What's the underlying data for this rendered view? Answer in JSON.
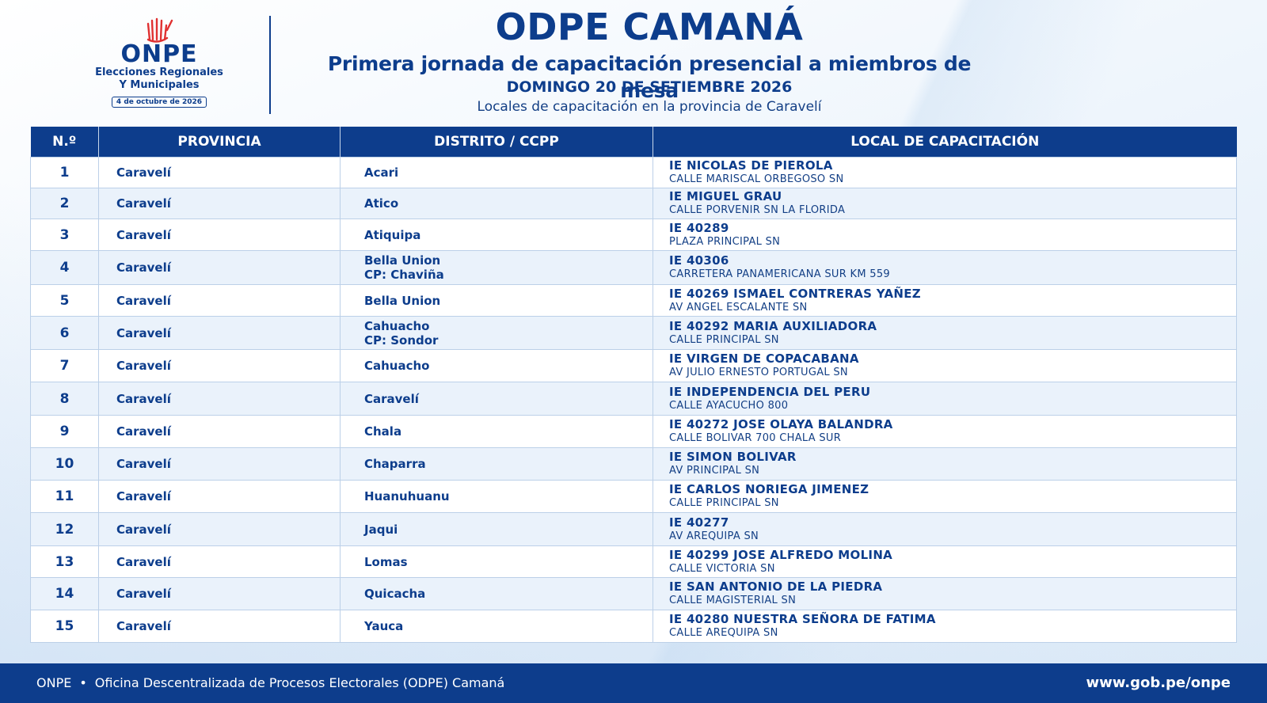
{
  "logo": {
    "name": "ONPE",
    "subtitle_line1": "Elecciones Regionales",
    "subtitle_line2": "Y Municipales",
    "date": "4 de octubre de 2026"
  },
  "header": {
    "title": "ODPE CAMANÁ",
    "subtitle": "Primera jornada de capacitación presencial a miembros de mesa",
    "date": "DOMINGO 20 DE SETIEMBRE 2026",
    "location": "Locales de capacitación en la provincia de Caravelí"
  },
  "table": {
    "columns": [
      "N.º",
      "PROVINCIA",
      "DISTRITO / CCPP",
      "LOCAL DE CAPACITACIÓN"
    ],
    "rows": [
      {
        "num": "1",
        "provincia": "Caravelí",
        "distrito": "Acari",
        "ccpp": "",
        "local": "IE NICOLAS DE PIEROLA",
        "direccion": "CALLE MARISCAL ORBEGOSO SN"
      },
      {
        "num": "2",
        "provincia": "Caravelí",
        "distrito": "Atico",
        "ccpp": "",
        "local": "IE MIGUEL GRAU",
        "direccion": "CALLE PORVENIR SN LA FLORIDA"
      },
      {
        "num": "3",
        "provincia": "Caravelí",
        "distrito": "Atiquipa",
        "ccpp": "",
        "local": "IE 40289",
        "direccion": "PLAZA PRINCIPAL SN"
      },
      {
        "num": "4",
        "provincia": "Caravelí",
        "distrito": "Bella Union",
        "ccpp": "CP: Chaviña",
        "local": "IE 40306",
        "direccion": "CARRETERA PANAMERICANA SUR KM 559"
      },
      {
        "num": "5",
        "provincia": "Caravelí",
        "distrito": "Bella Union",
        "ccpp": "",
        "local": "IE 40269 ISMAEL CONTRERAS YAÑEZ",
        "direccion": "AV ANGEL ESCALANTE SN"
      },
      {
        "num": "6",
        "provincia": "Caravelí",
        "distrito": "Cahuacho",
        "ccpp": "CP: Sondor",
        "local": "IE 40292 MARIA AUXILIADORA",
        "direccion": "CALLE PRINCIPAL SN"
      },
      {
        "num": "7",
        "provincia": "Caravelí",
        "distrito": "Cahuacho",
        "ccpp": "",
        "local": "IE VIRGEN DE COPACABANA",
        "direccion": "AV JULIO ERNESTO PORTUGAL SN"
      },
      {
        "num": "8",
        "provincia": "Caravelí",
        "distrito": "Caravelí",
        "ccpp": "",
        "local": "IE INDEPENDENCIA DEL PERU",
        "direccion": "CALLE AYACUCHO 800"
      },
      {
        "num": "9",
        "provincia": "Caravelí",
        "distrito": "Chala",
        "ccpp": "",
        "local": "IE 40272 JOSE OLAYA BALANDRA",
        "direccion": "CALLE BOLIVAR 700 CHALA SUR"
      },
      {
        "num": "10",
        "provincia": "Caravelí",
        "distrito": "Chaparra",
        "ccpp": "",
        "local": "IE SIMON BOLIVAR",
        "direccion": "AV PRINCIPAL SN"
      },
      {
        "num": "11",
        "provincia": "Caravelí",
        "distrito": "Huanuhuanu",
        "ccpp": "",
        "local": "IE CARLOS NORIEGA JIMENEZ",
        "direccion": "CALLE PRINCIPAL SN"
      },
      {
        "num": "12",
        "provincia": "Caravelí",
        "distrito": "Jaqui",
        "ccpp": "",
        "local": "IE 40277",
        "direccion": "AV AREQUIPA SN"
      },
      {
        "num": "13",
        "provincia": "Caravelí",
        "distrito": "Lomas",
        "ccpp": "",
        "local": "IE 40299 JOSE ALFREDO MOLINA",
        "direccion": "CALLE VICTORIA SN"
      },
      {
        "num": "14",
        "provincia": "Caravelí",
        "distrito": "Quicacha",
        "ccpp": "",
        "local": "IE SAN ANTONIO DE LA PIEDRA",
        "direccion": "CALLE MAGISTERIAL SN"
      },
      {
        "num": "15",
        "provincia": "Caravelí",
        "distrito": "Yauca",
        "ccpp": "",
        "local": "IE 40280 NUESTRA SEÑORA DE FATIMA",
        "direccion": "CALLE AREQUIPA SN"
      }
    ]
  },
  "footer": {
    "org": "ONPE",
    "separator": "•",
    "office": "Oficina Descentralizada de Procesos Electorales (ODPE) Camaná",
    "url": "www.gob.pe/onpe"
  },
  "colors": {
    "primary": "#0d3d8c",
    "row_alt": "#eaf2fb",
    "logo_red": "#e03131"
  }
}
